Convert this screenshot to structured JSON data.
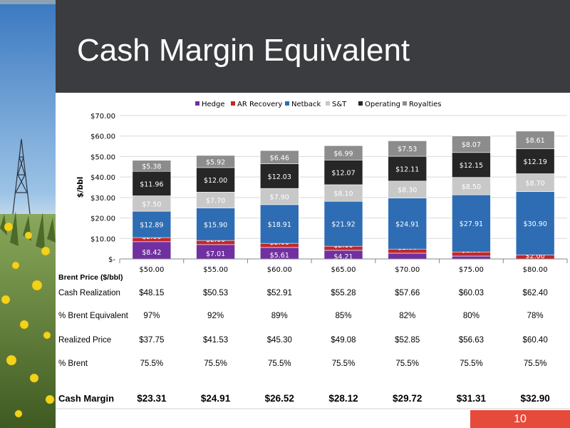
{
  "slide": {
    "title": "Cash Margin Equivalent",
    "page_number": "10",
    "accent": "#e64a3a",
    "header_bg": "#3a3c3f"
  },
  "chart_data": {
    "type": "bar",
    "stacked": true,
    "ylabel": "$/bbl",
    "xlabel": "Brent Price ($/bbl)",
    "categories": [
      "$50.00",
      "$55.00",
      "$60.00",
      "$65.00",
      "$70.00",
      "$75.00",
      "$80.00"
    ],
    "ylim": [
      0,
      70
    ],
    "yticks": [
      {
        "value": 0,
        "label": "$-"
      },
      {
        "value": 10,
        "label": "$10.00"
      },
      {
        "value": 20,
        "label": "$20.00"
      },
      {
        "value": 30,
        "label": "$30.00"
      },
      {
        "value": 40,
        "label": "$40.00"
      },
      {
        "value": 50,
        "label": "$50.00"
      },
      {
        "value": 60,
        "label": "$60.00"
      },
      {
        "value": 70,
        "label": "$70.00"
      }
    ],
    "grid": true,
    "legend_position": "top",
    "series": [
      {
        "name": "Hedge",
        "color": "#7030a0",
        "values": [
          8.42,
          7.01,
          5.61,
          4.21,
          2.81,
          1.4,
          0
        ],
        "labels": [
          "$8.42",
          "$7.01",
          "$5.61",
          "$4.21",
          "$2.81",
          "$1.40",
          ""
        ]
      },
      {
        "name": "AR Recovery",
        "color": "#c0282d",
        "values": [
          2.0,
          2.0,
          2.0,
          2.0,
          2.0,
          2.0,
          2.0
        ],
        "labels": [
          "$2.00",
          "$2.00",
          "$2.00",
          "$2.00",
          "$2.00",
          "$2.00",
          "$2.00"
        ]
      },
      {
        "name": "Netback",
        "color": "#2e6db4",
        "values": [
          12.89,
          15.9,
          18.91,
          21.92,
          24.91,
          27.91,
          30.9
        ],
        "labels": [
          "$12.89",
          "$15.90",
          "$18.91",
          "$21.92",
          "$24.91",
          "$27.91",
          "$30.90"
        ]
      },
      {
        "name": "S&T",
        "color": "#c8c8c8",
        "values": [
          7.5,
          7.7,
          7.9,
          8.1,
          8.3,
          8.5,
          8.7
        ],
        "labels": [
          "$7.50",
          "$7.70",
          "$7.90",
          "$8.10",
          "$8.30",
          "$8.50",
          "$8.70"
        ]
      },
      {
        "name": "Operating",
        "color": "#262626",
        "values": [
          11.96,
          12.0,
          12.03,
          12.07,
          12.11,
          12.15,
          12.19
        ],
        "labels": [
          "$11.96",
          "$12.00",
          "$12.03",
          "$12.07",
          "$12.11",
          "$12.15",
          "$12.19"
        ]
      },
      {
        "name": "Royalties",
        "color": "#8c8c8c",
        "values": [
          5.38,
          5.92,
          6.46,
          6.99,
          7.53,
          8.07,
          8.61
        ],
        "labels": [
          "$5.38",
          "$5.92",
          "$6.46",
          "$6.99",
          "$7.53",
          "$8.07",
          "$8.61"
        ]
      }
    ]
  },
  "table": {
    "rows": [
      {
        "label": "Cash Realization",
        "values": [
          "$48.15",
          "$50.53",
          "$52.91",
          "$55.28",
          "$57.66",
          "$60.03",
          "$62.40"
        ]
      },
      {
        "label": "% Brent Equivalent",
        "values": [
          "97%",
          "92%",
          "89%",
          "85%",
          "82%",
          "80%",
          "78%"
        ]
      },
      {
        "label": "Realized Price",
        "values": [
          "$37.75",
          "$41.53",
          "$45.30",
          "$49.08",
          "$52.85",
          "$56.63",
          "$60.40"
        ]
      },
      {
        "label": "% Brent",
        "values": [
          "75.5%",
          "75.5%",
          "75.5%",
          "75.5%",
          "75.5%",
          "75.5%",
          "75.5%"
        ]
      },
      {
        "label": "Cash Margin",
        "values": [
          "$23.31",
          "$24.91",
          "$26.52",
          "$28.12",
          "$29.72",
          "$31.31",
          "$32.90"
        ]
      }
    ]
  }
}
